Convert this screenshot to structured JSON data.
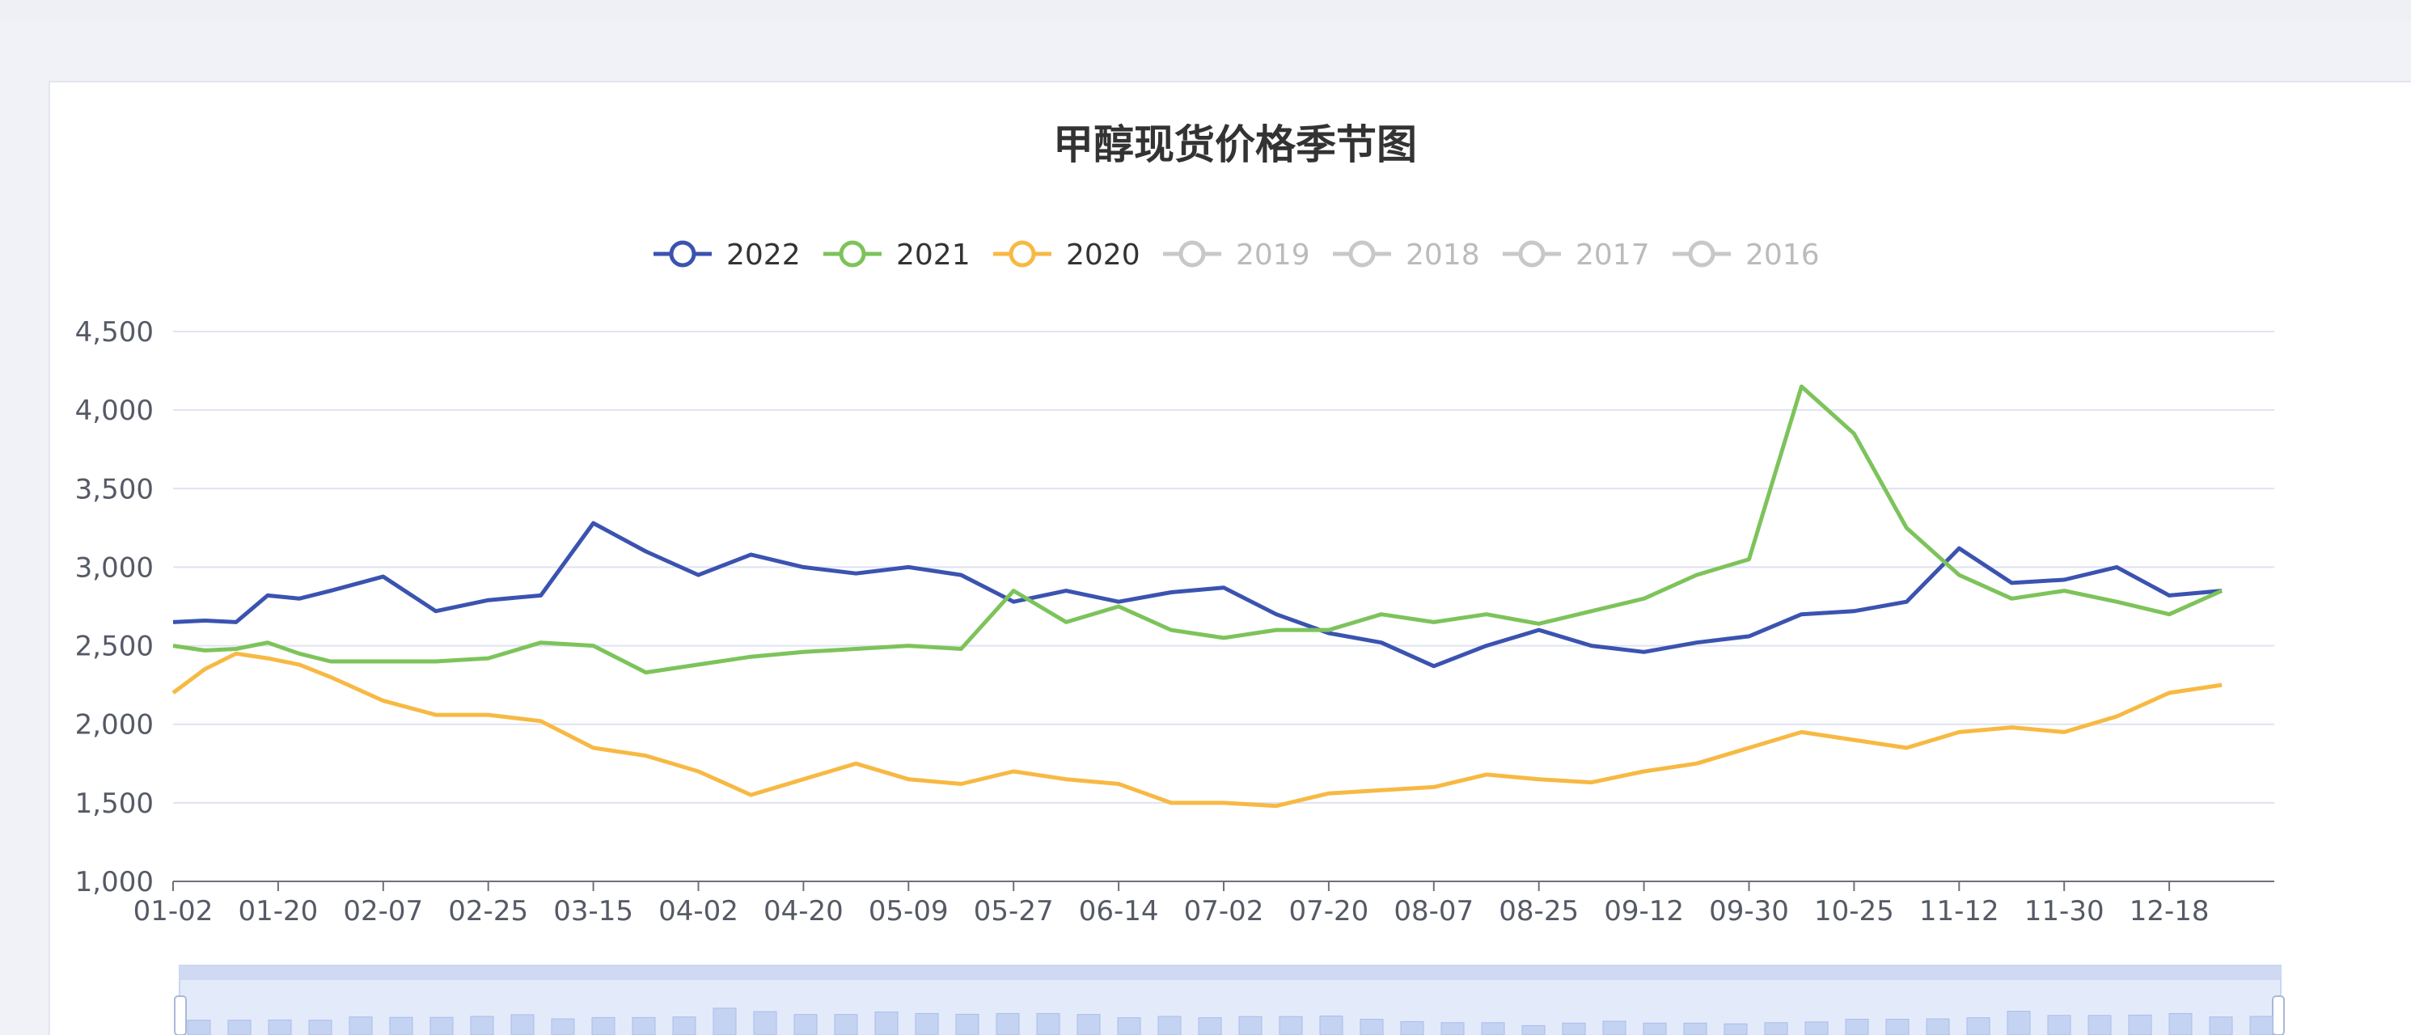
{
  "chart_data": {
    "type": "line",
    "title": "甲醇现货价格季节图",
    "xlabel": "",
    "ylabel": "",
    "x_ticks": [
      "01-02",
      "01-20",
      "02-07",
      "02-25",
      "03-15",
      "04-02",
      "04-20",
      "05-09",
      "05-27",
      "06-14",
      "07-02",
      "07-20",
      "08-07",
      "08-25",
      "09-12",
      "09-30",
      "10-25",
      "11-12",
      "11-30",
      "12-18"
    ],
    "ylim": [
      1000,
      4500
    ],
    "y_ticks": [
      1000,
      1500,
      2000,
      2500,
      3000,
      3500,
      4000,
      4500
    ],
    "y_tick_labels": [
      "1,000",
      "1,500",
      "2,000",
      "2,500",
      "3,000",
      "3,500",
      "4,000",
      "4,500"
    ],
    "grid": true,
    "legend_position": "top-center",
    "legend": [
      {
        "name": "2022",
        "active": true
      },
      {
        "name": "2021",
        "active": true
      },
      {
        "name": "2020",
        "active": true
      },
      {
        "name": "2019",
        "active": false
      },
      {
        "name": "2018",
        "active": false
      },
      {
        "name": "2017",
        "active": false
      },
      {
        "name": "2016",
        "active": false
      }
    ],
    "series": [
      {
        "name": "2022",
        "color": "#3b53b0",
        "x": [
          0,
          0.3,
          0.6,
          0.9,
          1.2,
          1.5,
          2,
          2.5,
          3,
          3.5,
          4,
          4.5,
          5,
          5.5,
          6,
          6.5,
          7,
          7.5,
          8,
          8.5,
          9,
          9.5,
          10,
          10.5,
          11,
          11.5,
          12,
          12.5,
          13,
          13.5,
          14,
          14.5,
          15,
          15.5,
          16,
          16.5,
          17,
          17.5,
          18,
          18.5,
          19,
          19.5
        ],
        "values": [
          2650,
          2660,
          2650,
          2820,
          2800,
          2850,
          2940,
          2720,
          2790,
          2820,
          3280,
          3100,
          2950,
          3080,
          3000,
          2960,
          3000,
          2950,
          2780,
          2850,
          2780,
          2840,
          2870,
          2700,
          2580,
          2520,
          2370,
          2500,
          2600,
          2500,
          2460,
          2520,
          2560,
          2700,
          2720,
          2780,
          3120,
          2900,
          2920,
          3000,
          2820,
          2850
        ]
      },
      {
        "name": "2021",
        "color": "#7dc35b",
        "x": [
          0,
          0.3,
          0.6,
          0.9,
          1.2,
          1.5,
          2,
          2.5,
          3,
          3.5,
          4,
          4.5,
          5,
          5.5,
          6,
          6.5,
          7,
          7.5,
          8,
          8.5,
          9,
          9.5,
          10,
          10.5,
          11,
          11.5,
          12,
          12.5,
          13,
          13.5,
          14,
          14.5,
          15,
          15.5,
          16,
          16.5,
          17,
          17.5,
          18,
          18.5,
          19,
          19.5
        ],
        "values": [
          2500,
          2470,
          2480,
          2520,
          2450,
          2400,
          2400,
          2400,
          2420,
          2520,
          2500,
          2330,
          2380,
          2430,
          2460,
          2480,
          2500,
          2480,
          2850,
          2650,
          2750,
          2600,
          2550,
          2600,
          2600,
          2700,
          2650,
          2700,
          2640,
          2720,
          2800,
          2950,
          3050,
          4150,
          3850,
          3250,
          2950,
          2800,
          2850,
          2780,
          2700,
          2850
        ]
      },
      {
        "name": "2020",
        "color": "#f7b943",
        "x": [
          0,
          0.3,
          0.6,
          0.9,
          1.2,
          1.5,
          2,
          2.5,
          3,
          3.5,
          4,
          4.5,
          5,
          5.5,
          6,
          6.5,
          7,
          7.5,
          8,
          8.5,
          9,
          9.5,
          10,
          10.5,
          11,
          11.5,
          12,
          12.5,
          13,
          13.5,
          14,
          14.5,
          15,
          15.5,
          16,
          16.5,
          17,
          17.5,
          18,
          18.5,
          19,
          19.5
        ],
        "values": [
          2200,
          2350,
          2450,
          2420,
          2380,
          2300,
          2150,
          2060,
          2060,
          2020,
          1850,
          1800,
          1700,
          1550,
          1650,
          1750,
          1650,
          1620,
          1700,
          1650,
          1620,
          1500,
          1500,
          1480,
          1560,
          1580,
          1600,
          1680,
          1650,
          1630,
          1700,
          1750,
          1850,
          1950,
          1900,
          1850,
          1950,
          1980,
          1950,
          2050,
          2200,
          2250
        ]
      }
    ]
  }
}
